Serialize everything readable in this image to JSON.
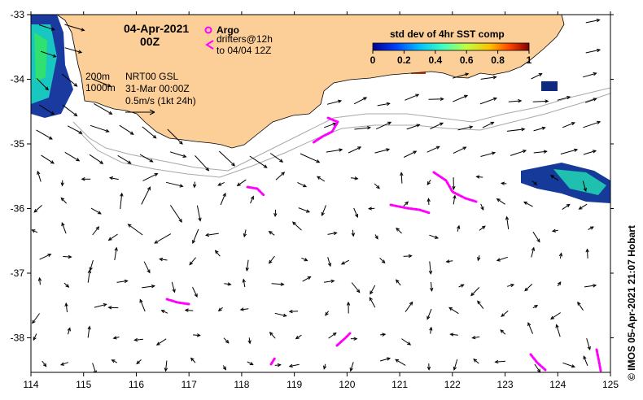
{
  "map": {
    "date_line1": "04-Apr-2021",
    "date_line2": "00Z",
    "argo_label": "Argo",
    "drifters_label": "drifters@12h",
    "drifters_to": "to 04/04 12Z",
    "depth_200": "200m",
    "depth_1000": "1000m",
    "product": "NRT00 GSL",
    "product_date": "31-Mar 00:00Z",
    "scale_label": "0.5m/s (1kt 24h)",
    "credit": "©  IMOS 05-Apr-2021 21:07 Hobart",
    "colorbar": {
      "title": "std dev of 4hr SST comp",
      "ticks": [
        "0",
        "0.2",
        "0.4",
        "0.6",
        "0.8",
        "1"
      ]
    },
    "x_ticks": [
      "114",
      "115",
      "116",
      "117",
      "118",
      "119",
      "120",
      "121",
      "122",
      "123",
      "124",
      "125"
    ],
    "y_ticks": [
      "-33",
      "-34",
      "-35",
      "-36",
      "-37",
      "-38"
    ],
    "colors": {
      "land": "#fccf99",
      "argo": "#ff00ff",
      "isobath": "#a8a8a8"
    }
  }
}
